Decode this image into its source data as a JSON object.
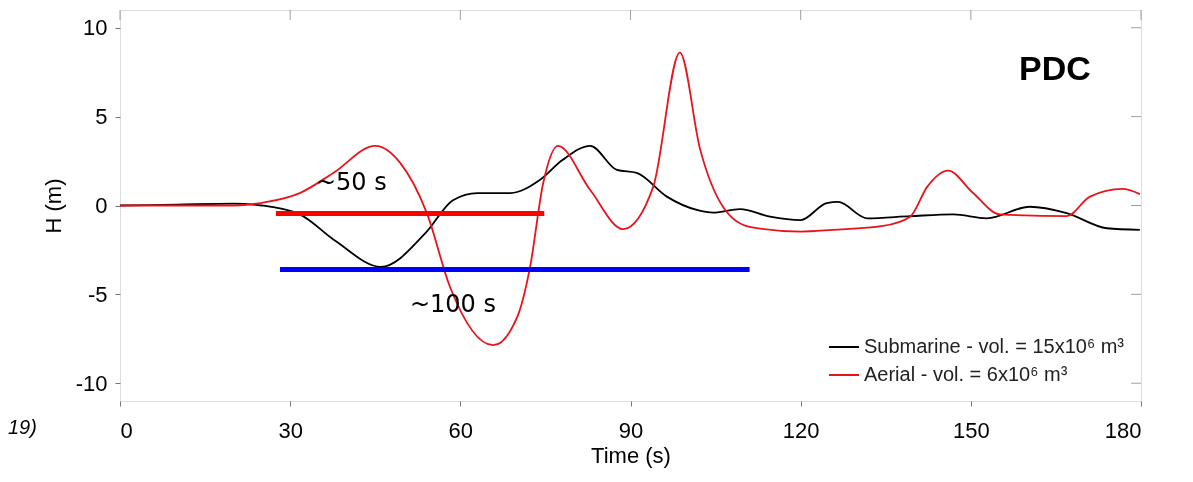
{
  "chart_data": {
    "type": "line",
    "xlabel": "Time (s)",
    "ylabel": "H (m)",
    "xlim": [
      0,
      180
    ],
    "xticks": [
      0,
      30,
      60,
      90,
      120,
      150,
      180
    ],
    "ylim": [
      -11,
      11
    ],
    "yticks": [
      -10,
      -5,
      0,
      5,
      10
    ],
    "legend": "bottom right",
    "series": [
      {
        "name": "Submarine - vol. = 15x10⁶ m³",
        "color": "#000000",
        "x": [
          0,
          10,
          20,
          25,
          31.7,
          38,
          46,
          54,
          58.7,
          63,
          68.8,
          74,
          78,
          82.9,
          87.6,
          91.1,
          96.4,
          101.7,
          104.6,
          109.3,
          114.6,
          120,
          124.6,
          126.6,
          131.7,
          139.3,
          146.9,
          152.8,
          160.4,
          166.9,
          174,
          179.8
        ],
        "values": [
          0,
          0.05,
          0.1,
          0,
          -0.5,
          -2,
          -3.45,
          -1.5,
          0.3,
          0.7,
          0.7,
          1.44,
          2.56,
          3.36,
          2.0,
          1.83,
          0.5,
          -0.25,
          -0.4,
          -0.2,
          -0.63,
          -0.82,
          0.14,
          0.2,
          -0.72,
          -0.6,
          -0.5,
          -0.72,
          -0.07,
          -0.43,
          -1.28,
          -1.37
        ]
      },
      {
        "name": "Aerial - vol. =   6x10⁶ m³",
        "color": "#e8141c",
        "x": [
          0,
          10,
          20,
          25.9,
          31.7,
          37.6,
          45,
          49.4,
          54.1,
          58.2,
          65.8,
          70,
          72.3,
          74.6,
          77.2,
          82.9,
          88.7,
          94,
          98.7,
          102.3,
          106.3,
          111,
          120,
          125.7,
          134.5,
          139.3,
          142.3,
          146,
          150.4,
          155.1,
          166.9,
          171,
          176.7,
          179.8
        ],
        "values": [
          0,
          0,
          0,
          0.2,
          0.7,
          1.83,
          3.36,
          2.4,
          -0.43,
          -4.6,
          -7.86,
          -6.3,
          -3.45,
          1.25,
          3.36,
          0.87,
          -1.33,
          1.05,
          8.6,
          3.13,
          -0.07,
          -1.2,
          -1.47,
          -1.37,
          -1.15,
          -0.63,
          1.05,
          1.96,
          0.7,
          -0.5,
          -0.6,
          0.5,
          0.93,
          0.64
        ]
      },
      {
        "color": "#ff0000",
        "x": [
          27.5,
          74.8
        ],
        "values": [
          -0.45,
          -0.45
        ]
      },
      {
        "color": "#0000ff",
        "x": [
          28.2,
          111
        ],
        "values": [
          -3.6,
          -3.6
        ]
      }
    ],
    "annotations": [
      "PDC",
      "~50 s",
      "~100 s",
      "19)"
    ]
  }
}
